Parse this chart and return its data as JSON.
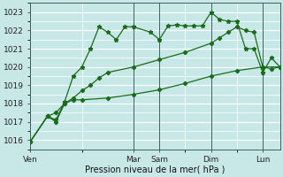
{
  "xlabel": "Pression niveau de la mer( hPa )",
  "bg_color": "#c8e8e8",
  "plot_bg_color": "#c8e8e8",
  "grid_color": "#ffffff",
  "line_color": "#1a6b1a",
  "ylim": [
    1015.5,
    1023.5
  ],
  "yticks": [
    1016,
    1017,
    1018,
    1019,
    1020,
    1021,
    1022,
    1023
  ],
  "day_labels": [
    "Ven",
    "",
    "Mar",
    "Sam",
    "",
    "Dim",
    "",
    "Lun"
  ],
  "vline_positions": [
    0,
    12,
    15,
    21,
    27
  ],
  "xmin": 0,
  "xmax": 29,
  "series1_x": [
    0,
    2,
    3,
    4,
    5,
    6,
    7,
    8,
    9,
    10,
    11,
    12,
    14,
    15,
    16,
    17,
    18,
    19,
    20,
    21,
    22,
    23,
    24,
    25,
    26,
    27,
    28,
    29
  ],
  "series1_y": [
    1015.9,
    1017.3,
    1017.1,
    1018.1,
    1019.5,
    1020.0,
    1021.0,
    1022.2,
    1021.9,
    1021.5,
    1022.2,
    1022.2,
    1021.9,
    1021.5,
    1022.25,
    1022.3,
    1022.25,
    1022.25,
    1022.25,
    1023.0,
    1022.6,
    1022.5,
    1022.5,
    1021.0,
    1021.0,
    1019.7,
    1020.5,
    1020.0
  ],
  "series2_x": [
    0,
    2,
    3,
    4,
    5,
    6,
    7,
    8,
    9,
    12,
    15,
    18,
    21,
    22,
    23,
    24,
    25,
    26,
    27,
    28,
    29
  ],
  "series2_y": [
    1015.9,
    1017.3,
    1017.5,
    1018.0,
    1018.3,
    1018.7,
    1019.0,
    1019.4,
    1019.7,
    1020.0,
    1020.4,
    1020.8,
    1021.3,
    1021.6,
    1021.9,
    1022.2,
    1022.0,
    1021.9,
    1020.0,
    1019.9,
    1020.0
  ],
  "series3_x": [
    0,
    2,
    3,
    4,
    5,
    6,
    9,
    12,
    15,
    18,
    21,
    24,
    27,
    29
  ],
  "series3_y": [
    1015.9,
    1017.3,
    1017.0,
    1018.0,
    1018.2,
    1018.2,
    1018.3,
    1018.5,
    1018.75,
    1019.1,
    1019.5,
    1019.8,
    1020.0,
    1020.0
  ]
}
